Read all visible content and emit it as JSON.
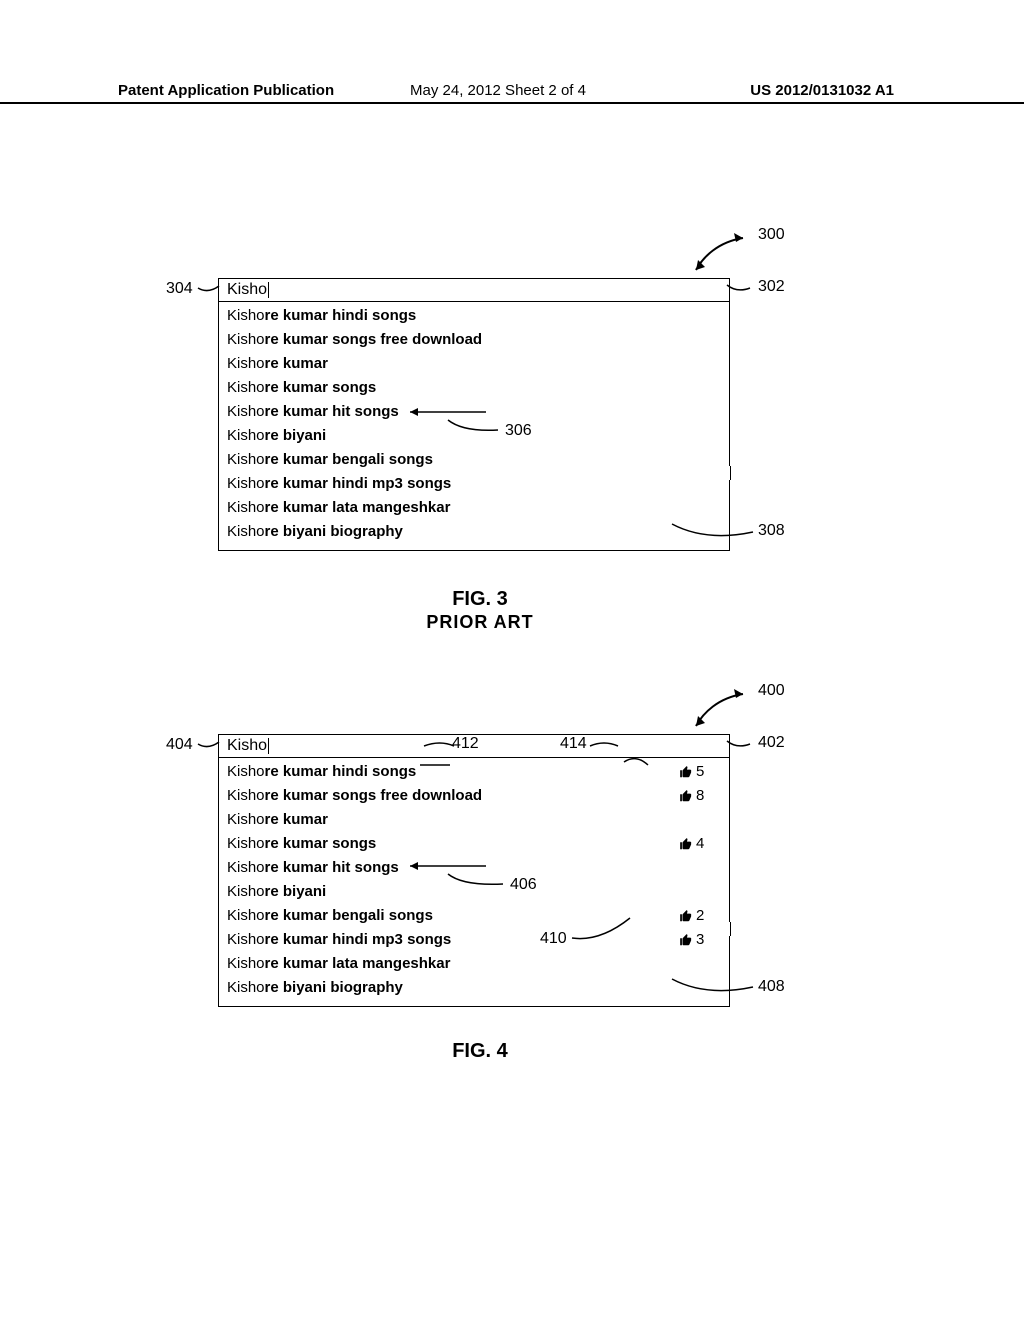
{
  "header": {
    "left": "Patent Application Publication",
    "center": "May 24, 2012  Sheet 2 of 4",
    "right": "US 2012/0131032 A1"
  },
  "fig3": {
    "search_input": "Kisho",
    "suggestions": [
      {
        "prefix": "Kisho",
        "bold": "re kumar hindi songs"
      },
      {
        "prefix": "Kisho",
        "bold": "re kumar songs free download"
      },
      {
        "prefix": "Kisho",
        "bold": "re kumar"
      },
      {
        "prefix": "Kisho",
        "bold": "re kumar songs"
      },
      {
        "prefix": "Kisho",
        "bold": "re kumar hit songs"
      },
      {
        "prefix": "Kisho",
        "bold": "re biyani"
      },
      {
        "prefix": "Kisho",
        "bold": "re kumar bengali songs"
      },
      {
        "prefix": "Kisho",
        "bold": "re kumar hindi mp3 songs"
      },
      {
        "prefix": "Kisho",
        "bold": "re kumar lata mangeshkar"
      },
      {
        "prefix": "Kisho",
        "bold": "re biyani biography"
      }
    ],
    "caption": "FIG. 3",
    "subcaption": "PRIOR ART",
    "refs": {
      "r300": "300",
      "r302": "302",
      "r304": "304",
      "r306": "306",
      "r308": "308"
    }
  },
  "fig4": {
    "search_input": "Kisho",
    "suggestions": [
      {
        "prefix": "Kisho",
        "bold": "re kumar hindi songs",
        "likes": "5"
      },
      {
        "prefix": "Kisho",
        "bold": "re kumar songs free download",
        "likes": "8"
      },
      {
        "prefix": "Kisho",
        "bold": "re kumar"
      },
      {
        "prefix": "Kisho",
        "bold": "re kumar songs",
        "likes": "4"
      },
      {
        "prefix": "Kisho",
        "bold": "re kumar hit songs"
      },
      {
        "prefix": "Kisho",
        "bold": "re biyani"
      },
      {
        "prefix": "Kisho",
        "bold": "re kumar bengali songs",
        "likes": "2"
      },
      {
        "prefix": "Kisho",
        "bold": "re kumar hindi mp3 songs",
        "likes": "3"
      },
      {
        "prefix": "Kisho",
        "bold": "re kumar lata mangeshkar"
      },
      {
        "prefix": "Kisho",
        "bold": "re biyani biography"
      }
    ],
    "caption": "FIG. 4",
    "refs": {
      "r400": "400",
      "r402": "402",
      "r404": "404",
      "r406": "406",
      "r408": "408",
      "r410": "410",
      "r412": "412",
      "r414": "414"
    }
  }
}
